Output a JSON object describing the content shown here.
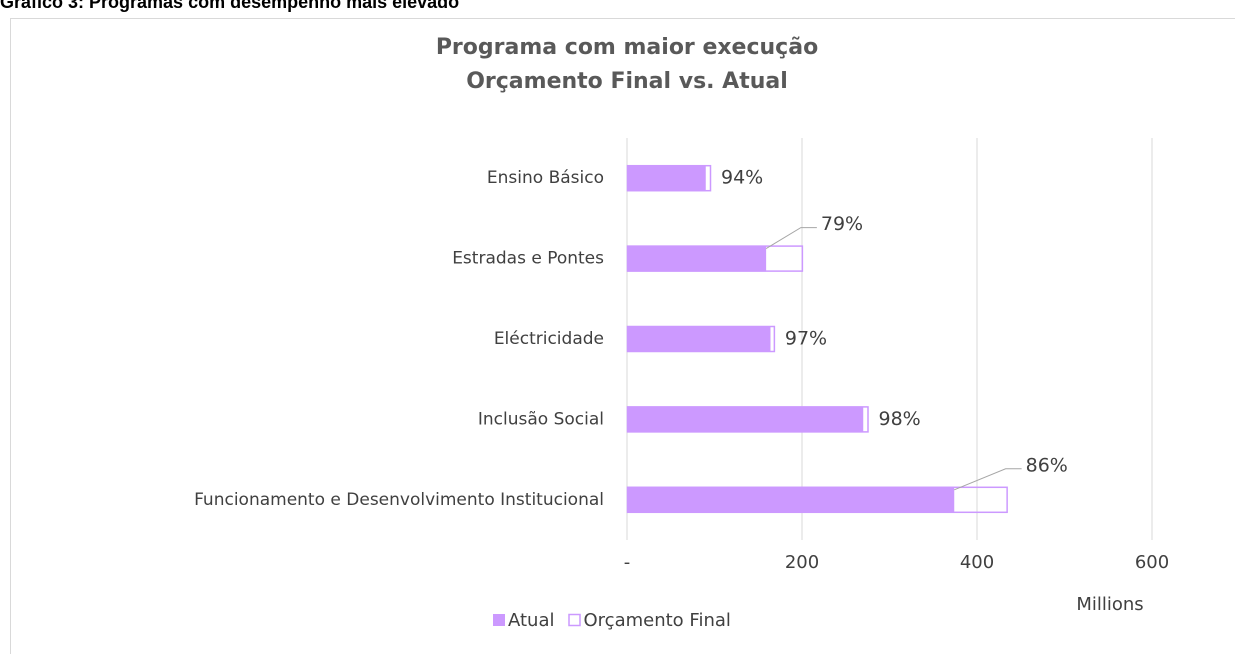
{
  "page_title": "Gráfico 3: Programas com desempenho mais elevado",
  "chart_data": {
    "type": "bar",
    "orientation": "horizontal",
    "title": [
      "Programa com maior execução",
      "Orçamento Final vs. Atual"
    ],
    "categories": [
      "Ensino Básico",
      "Estradas e Pontes",
      "Eléctricidade",
      "Inclusão Social",
      "Funcionamento e Desenvolvimento Institucional"
    ],
    "series": [
      {
        "name": "Atual",
        "color": "#cc99ff",
        "style": "filled",
        "values": [
          90,
          159,
          164,
          270,
          374
        ]
      },
      {
        "name": "Orçamento Final",
        "color": "#cc99ff",
        "style": "outline",
        "values": [
          96,
          201,
          169,
          276,
          435
        ]
      }
    ],
    "execution_labels": [
      "94%",
      "79%",
      "97%",
      "98%",
      "86%"
    ],
    "xlim": [
      0,
      600
    ],
    "xticks": [
      {
        "value": 0,
        "label": "-"
      },
      200,
      400,
      600
    ],
    "x_unit_label": "Millions",
    "grid": true,
    "legend": "bottom"
  }
}
